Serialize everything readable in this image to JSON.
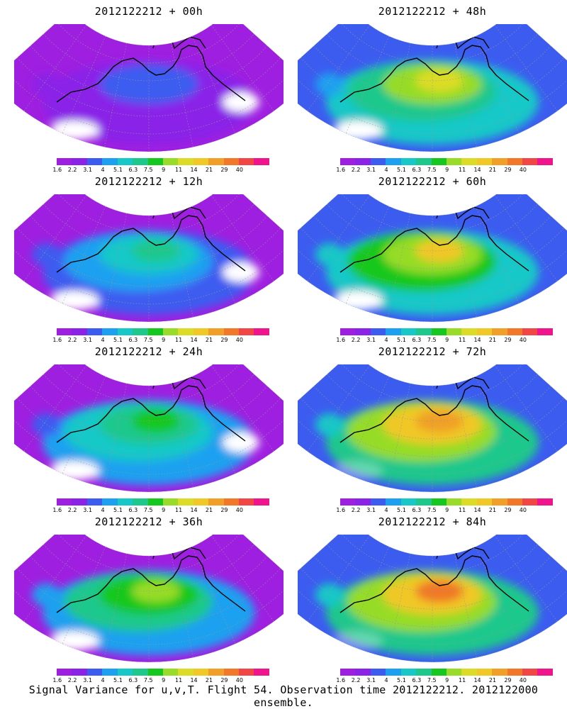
{
  "panels": [
    {
      "title": "2012122212 + 00h",
      "intensity": 0.15
    },
    {
      "title": "2012122212 + 48h",
      "intensity": 0.62
    },
    {
      "title": "2012122212 + 12h",
      "intensity": 0.35
    },
    {
      "title": "2012122212 + 60h",
      "intensity": 0.7
    },
    {
      "title": "2012122212 + 24h",
      "intensity": 0.45
    },
    {
      "title": "2012122212 + 72h",
      "intensity": 0.8
    },
    {
      "title": "2012122212 + 36h",
      "intensity": 0.55
    },
    {
      "title": "2012122212 + 84h",
      "intensity": 0.85
    }
  ],
  "colorbar": {
    "colors": [
      "#9f1fe0",
      "#8a22e8",
      "#3c5cf0",
      "#1ea0f0",
      "#18c8c8",
      "#1ec88c",
      "#16c81e",
      "#96dc28",
      "#dcdc28",
      "#f0c828",
      "#f0a028",
      "#f07828",
      "#f04646",
      "#f0148c"
    ],
    "tick_labels": [
      "1.6",
      "2.2",
      "3.1",
      "4",
      "5.1",
      "6.3",
      "7.5",
      "9",
      "11",
      "14",
      "21",
      "29",
      "40"
    ]
  },
  "caption": "Signal Variance for u,v,T. Flight 54. Observation time 2012122212. 2012122000 ensemble."
}
